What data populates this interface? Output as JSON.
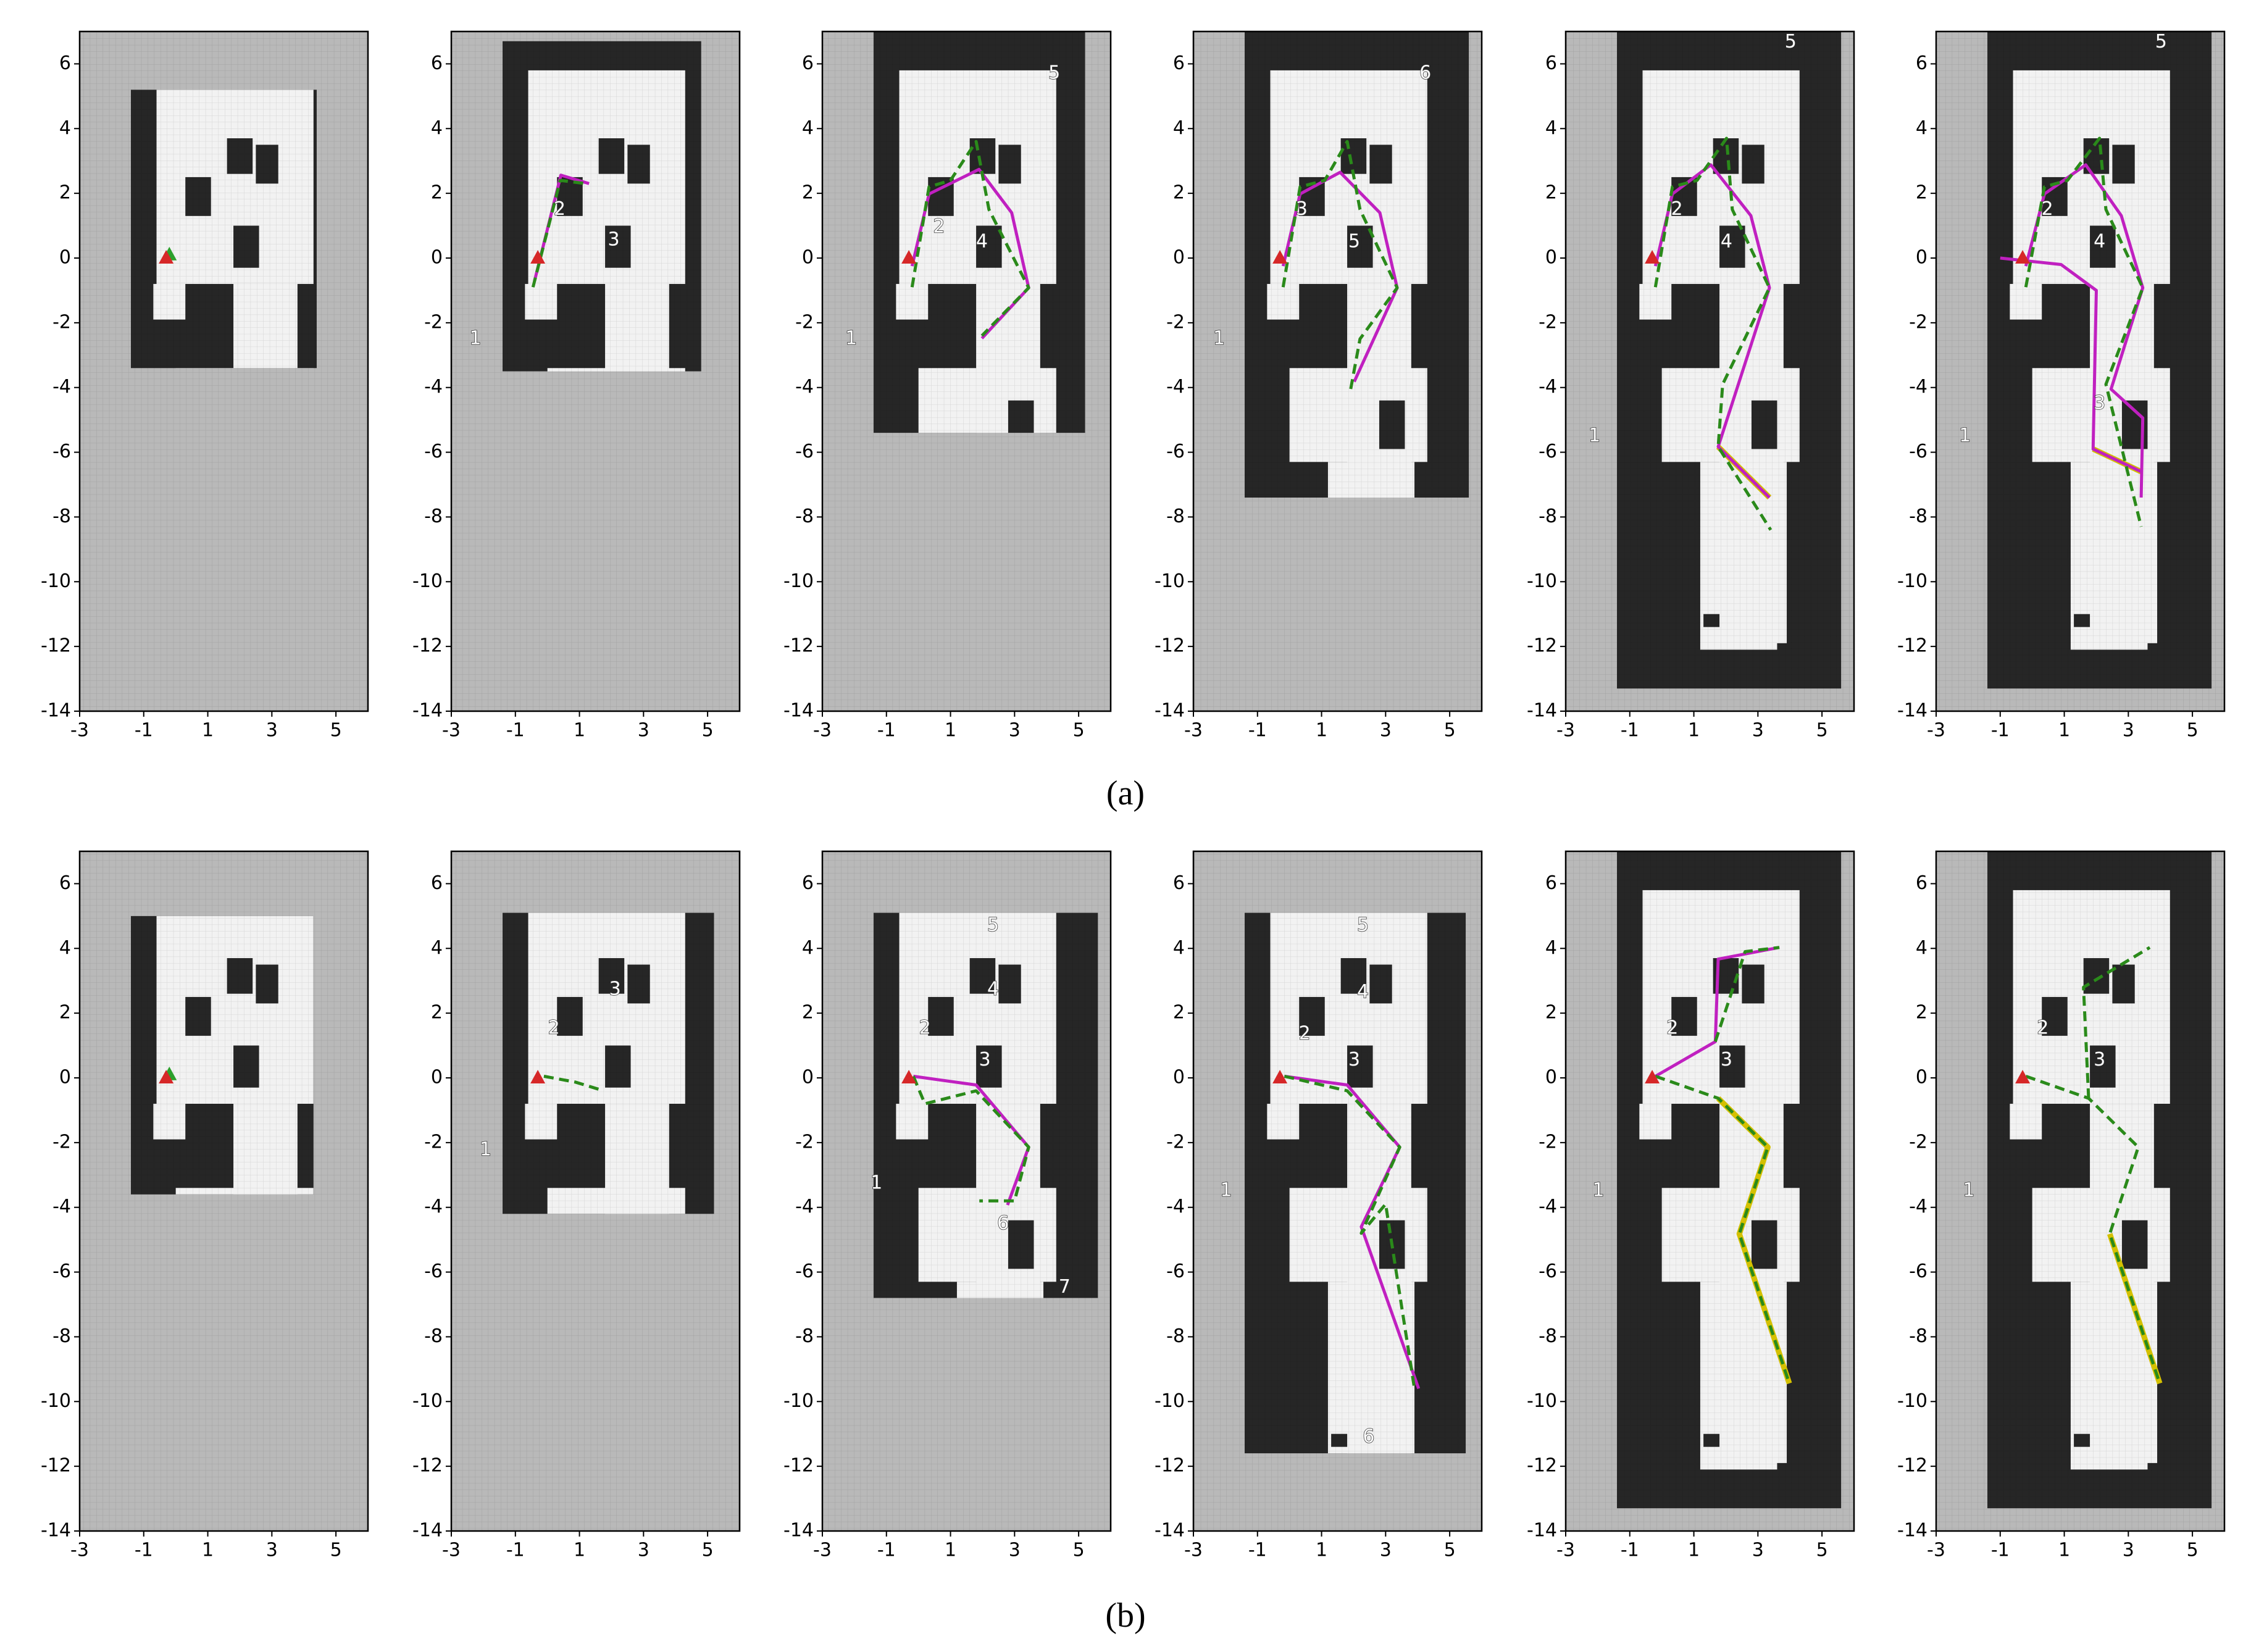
{
  "chart_data": [
    {
      "type": "map",
      "xlim": [
        -3,
        6
      ],
      "ylim": [
        -14,
        7
      ],
      "xticks": [
        -3,
        -1,
        1,
        3,
        5
      ],
      "yticks": [
        -14,
        -12,
        -10,
        -8,
        -6,
        -4,
        -2,
        0,
        2,
        4,
        6
      ],
      "annotations": [],
      "series": [
        {
          "color": "#2ca02c",
          "marker": "^",
          "x": [
            -0.2
          ],
          "y": [
            0.1
          ]
        },
        {
          "color": "#d62728",
          "marker": "^",
          "x": [
            -0.3
          ],
          "y": [
            0
          ]
        }
      ]
    },
    {
      "type": "map",
      "xlim": [
        -3,
        6
      ],
      "ylim": [
        -14,
        7
      ],
      "xticks": [
        -3,
        -1,
        1,
        3,
        5
      ],
      "yticks": [
        -14,
        -12,
        -10,
        -8,
        -6,
        -4,
        -2,
        0,
        2,
        4,
        6
      ],
      "annotations": [
        {
          "text": "1",
          "x": -2.25,
          "y": -2.5
        },
        {
          "text": "2",
          "x": 0.38,
          "y": 1.5
        },
        {
          "text": "3",
          "x": 2.07,
          "y": 0.55
        }
      ],
      "series": [
        {
          "color": "#c020c0",
          "x": [
            -0.4,
            0.42,
            1.3
          ],
          "y": [
            -0.7,
            2.56,
            2.3
          ]
        },
        {
          "color": "#2a8a1a",
          "dash": true,
          "x": [
            -0.45,
            0.4,
            1.2
          ],
          "y": [
            -0.9,
            2.4,
            2.3
          ]
        },
        {
          "color": "#d62728",
          "marker": "^",
          "x": [
            -0.3
          ],
          "y": [
            0
          ]
        }
      ]
    },
    {
      "type": "map",
      "xlim": [
        -3,
        6
      ],
      "ylim": [
        -14,
        7
      ],
      "xticks": [
        -3,
        -1,
        1,
        3,
        5
      ],
      "yticks": [
        -14,
        -12,
        -10,
        -8,
        -6,
        -4,
        -2,
        0,
        2,
        4,
        6
      ],
      "annotations": [
        {
          "text": "1",
          "x": -2.1,
          "y": -2.5
        },
        {
          "text": "2",
          "x": 0.64,
          "y": 0.95
        },
        {
          "text": "4",
          "x": 1.98,
          "y": 0.5
        },
        {
          "text": "5",
          "x": 4.24,
          "y": 5.7
        }
      ],
      "series": [
        {
          "color": "#c020c0",
          "x": [
            -0.2,
            0.33,
            1.89,
            2.91,
            3.44,
            1.98
          ],
          "y": [
            -0.25,
            1.98,
            2.74,
            1.4,
            -0.92,
            -2.48
          ]
        },
        {
          "color": "#2a8a1a",
          "dash": true,
          "x": [
            -0.2,
            0.33,
            1,
            1.8,
            2.2,
            3.44,
            1.98
          ],
          "y": [
            -0.9,
            2.2,
            2.4,
            3.6,
            1.5,
            -0.92,
            -2.4
          ]
        },
        {
          "color": "#d62728",
          "marker": "^",
          "x": [
            -0.3
          ],
          "y": [
            0
          ]
        }
      ]
    },
    {
      "type": "map",
      "xlim": [
        -3,
        6
      ],
      "ylim": [
        -14,
        7
      ],
      "xticks": [
        -3,
        -1,
        1,
        3,
        5
      ],
      "yticks": [
        -14,
        -12,
        -10,
        -8,
        -6,
        -4,
        -2,
        0,
        2,
        4,
        6
      ],
      "annotations": [
        {
          "text": "1",
          "x": -2.2,
          "y": -2.5
        },
        {
          "text": "3",
          "x": 0.38,
          "y": 1.5
        },
        {
          "text": "5",
          "x": 2.02,
          "y": 0.5
        },
        {
          "text": "6",
          "x": 4.24,
          "y": 5.7
        }
      ],
      "series": [
        {
          "color": "#c020c0",
          "x": [
            -0.2,
            0.33,
            1.58,
            2.82,
            3.36,
            2.02
          ],
          "y": [
            -0.25,
            1.98,
            2.65,
            1.4,
            -0.92,
            -3.82
          ]
        },
        {
          "color": "#2a8a1a",
          "dash": true,
          "x": [
            -0.2,
            0.33,
            1.1,
            1.8,
            2.2,
            3.36,
            2.2,
            1.9
          ],
          "y": [
            -0.9,
            2.2,
            2.4,
            3.6,
            1.5,
            -0.92,
            -2.5,
            -4.1
          ]
        },
        {
          "color": "#d62728",
          "marker": "^",
          "x": [
            -0.3
          ],
          "y": [
            0
          ]
        }
      ]
    },
    {
      "type": "map",
      "xlim": [
        -3,
        6
      ],
      "ylim": [
        -14,
        7
      ],
      "xticks": [
        -3,
        -1,
        1,
        3,
        5
      ],
      "yticks": [
        -14,
        -12,
        -10,
        -8,
        -6,
        -4,
        -2,
        0,
        2,
        4,
        6
      ],
      "annotations": [
        {
          "text": "1",
          "x": -2.1,
          "y": -5.5
        },
        {
          "text": "2",
          "x": 0.47,
          "y": 1.5
        },
        {
          "text": "4",
          "x": 2.02,
          "y": 0.5
        },
        {
          "text": "5",
          "x": 4.02,
          "y": 6.67
        }
      ],
      "series": [
        {
          "color": "#d4c000",
          "width": 3,
          "x": [
            1.76,
            3.36
          ],
          "y": [
            -5.83,
            -7.4
          ]
        },
        {
          "color": "#c020c0",
          "x": [
            -0.2,
            0.33,
            1.53,
            2.78,
            3.36,
            1.76,
            3.36
          ],
          "y": [
            -0.25,
            1.98,
            2.88,
            1.31,
            -0.92,
            -5.83,
            -7.4
          ]
        },
        {
          "color": "#2a8a1a",
          "dash": true,
          "x": [
            -0.2,
            0.33,
            1.1,
            2.02,
            2.2,
            3.36,
            1.9,
            1.76,
            3.4
          ],
          "y": [
            -0.9,
            2.2,
            2.4,
            3.7,
            1.5,
            -0.92,
            -3.9,
            -5.83,
            -8.4
          ]
        },
        {
          "color": "#d62728",
          "marker": "^",
          "x": [
            -0.3
          ],
          "y": [
            0
          ]
        }
      ]
    },
    {
      "type": "map",
      "xlim": [
        -3,
        6
      ],
      "ylim": [
        -14,
        7
      ],
      "xticks": [
        -3,
        -1,
        1,
        3,
        5
      ],
      "yticks": [
        -14,
        -12,
        -10,
        -8,
        -6,
        -4,
        -2,
        0,
        2,
        4,
        6
      ],
      "annotations": [
        {
          "text": "1",
          "x": -2.1,
          "y": -5.5
        },
        {
          "text": "2",
          "x": 0.47,
          "y": 1.5
        },
        {
          "text": "4",
          "x": 2.1,
          "y": 0.5
        },
        {
          "text": "3",
          "x": 2.1,
          "y": -4.5
        },
        {
          "text": "5",
          "x": 4.02,
          "y": 6.67
        }
      ],
      "series": [
        {
          "color": "#d4c000",
          "width": 3,
          "x": [
            1.9,
            3.4
          ],
          "y": [
            -5.9,
            -6.6
          ]
        },
        {
          "color": "#c020c0",
          "x": [
            -0.2,
            0.38,
            1.67,
            2.78,
            3.45,
            2.46,
            3.45,
            3.4
          ],
          "y": [
            -0.25,
            1.98,
            2.88,
            1.31,
            -0.92,
            -4.05,
            -4.94,
            -7.4
          ]
        },
        {
          "color": "#c020c0",
          "x": [
            -1,
            0.9,
            2,
            1.9,
            3.4
          ],
          "y": [
            0,
            -0.2,
            -1,
            -5.9,
            -6.6
          ]
        },
        {
          "color": "#2a8a1a",
          "dash": true,
          "x": [
            -0.2,
            0.38,
            1.1,
            2.1,
            2.3,
            3.45,
            2.3,
            3.4
          ],
          "y": [
            -0.9,
            2.2,
            2.4,
            3.7,
            1.5,
            -0.92,
            -3.9,
            -8.3
          ]
        },
        {
          "color": "#d62728",
          "marker": "^",
          "x": [
            -0.3
          ],
          "y": [
            0
          ]
        }
      ]
    },
    {
      "type": "map",
      "xlim": [
        -3,
        6
      ],
      "ylim": [
        -14,
        7
      ],
      "xticks": [
        -3,
        -1,
        1,
        3,
        5
      ],
      "yticks": [
        -14,
        -12,
        -10,
        -8,
        -6,
        -4,
        -2,
        0,
        2,
        4,
        6
      ],
      "annotations": [],
      "series": [
        {
          "color": "#2ca02c",
          "marker": "^",
          "x": [
            -0.2
          ],
          "y": [
            0.1
          ]
        },
        {
          "color": "#d62728",
          "marker": "^",
          "x": [
            -0.3
          ],
          "y": [
            0
          ]
        }
      ]
    },
    {
      "type": "map",
      "xlim": [
        -3,
        6
      ],
      "ylim": [
        -14,
        7
      ],
      "xticks": [
        -3,
        -1,
        1,
        3,
        5
      ],
      "yticks": [
        -14,
        -12,
        -10,
        -8,
        -6,
        -4,
        -2,
        0,
        2,
        4,
        6
      ],
      "annotations": [
        {
          "text": "1",
          "x": -1.93,
          "y": -2.23
        },
        {
          "text": "2",
          "x": 0.2,
          "y": 1.53
        },
        {
          "text": "3",
          "x": 2.11,
          "y": 2.73
        }
      ],
      "series": [
        {
          "color": "#2a8a1a",
          "dash": true,
          "x": [
            -0.11,
            0.87,
            1.76
          ],
          "y": [
            0.05,
            -0.13,
            -0.4
          ]
        },
        {
          "color": "#d62728",
          "marker": "^",
          "x": [
            -0.3
          ],
          "y": [
            0
          ]
        }
      ]
    },
    {
      "type": "map",
      "xlim": [
        -3,
        6
      ],
      "ylim": [
        -14,
        7
      ],
      "xticks": [
        -3,
        -1,
        1,
        3,
        5
      ],
      "yticks": [
        -14,
        -12,
        -10,
        -8,
        -6,
        -4,
        -2,
        0,
        2,
        4,
        6
      ],
      "annotations": [
        {
          "text": "1",
          "x": -1.31,
          "y": -3.26
        },
        {
          "text": "2",
          "x": 0.2,
          "y": 1.53
        },
        {
          "text": "3",
          "x": 2.07,
          "y": 0.54
        },
        {
          "text": "4",
          "x": 2.33,
          "y": 2.73
        },
        {
          "text": "5",
          "x": 2.33,
          "y": 4.7
        },
        {
          "text": "6",
          "x": 2.64,
          "y": -4.51
        },
        {
          "text": "7",
          "x": 4.56,
          "y": -6.48
        }
      ],
      "series": [
        {
          "color": "#c020c0",
          "x": [
            -0.16,
            1.8,
            3.44,
            2.78
          ],
          "y": [
            0.05,
            -0.22,
            -2.14,
            -3.93
          ]
        },
        {
          "color": "#2a8a1a",
          "dash": true,
          "x": [
            -0.16,
            0.2,
            1.8,
            3.44,
            3,
            1.9
          ],
          "y": [
            0.05,
            -0.8,
            -0.4,
            -2.14,
            -3.8,
            -3.8
          ]
        },
        {
          "color": "#d62728",
          "marker": "^",
          "x": [
            -0.3
          ],
          "y": [
            0
          ]
        }
      ]
    },
    {
      "type": "map",
      "xlim": [
        -3,
        6
      ],
      "ylim": [
        -14,
        7
      ],
      "xticks": [
        -3,
        -1,
        1,
        3,
        5
      ],
      "yticks": [
        -14,
        -12,
        -10,
        -8,
        -6,
        -4,
        -2,
        0,
        2,
        4,
        6
      ],
      "annotations": [
        {
          "text": "1",
          "x": -1.98,
          "y": -3.49
        },
        {
          "text": "2",
          "x": 0.47,
          "y": 1.35
        },
        {
          "text": "3",
          "x": 2.02,
          "y": 0.54
        },
        {
          "text": "4",
          "x": 2.29,
          "y": 2.64
        },
        {
          "text": "5",
          "x": 2.29,
          "y": 4.7
        },
        {
          "text": "6",
          "x": 2.47,
          "y": -11.1
        }
      ],
      "series": [
        {
          "color": "#c020c0",
          "x": [
            -0.16,
            1.8,
            3.44,
            2.24,
            4.03
          ],
          "y": [
            0.05,
            -0.22,
            -2.14,
            -4.6,
            -9.6
          ]
        },
        {
          "color": "#2a8a1a",
          "dash": true,
          "x": [
            -0.16,
            1.8,
            3.44,
            2.24,
            3,
            3.9
          ],
          "y": [
            0.05,
            -0.4,
            -2.14,
            -4.8,
            -3.9,
            -9.6
          ]
        },
        {
          "color": "#d62728",
          "marker": "^",
          "x": [
            -0.3
          ],
          "y": [
            0
          ]
        }
      ]
    },
    {
      "type": "map",
      "xlim": [
        -3,
        6
      ],
      "ylim": [
        -14,
        7
      ],
      "xticks": [
        -3,
        -1,
        1,
        3,
        5
      ],
      "yticks": [
        -14,
        -12,
        -10,
        -8,
        -6,
        -4,
        -2,
        0,
        2,
        4,
        6
      ],
      "annotations": [
        {
          "text": "1",
          "x": -1.98,
          "y": -3.49
        },
        {
          "text": "2",
          "x": 0.33,
          "y": 1.53
        },
        {
          "text": "3",
          "x": 2.02,
          "y": 0.54
        }
      ],
      "series": [
        {
          "color": "#d4c000",
          "width": 3,
          "x": [
            1.76,
            3.31,
            2.42,
            3.98
          ],
          "y": [
            -0.63,
            -2.14,
            -4.82,
            -9.44
          ]
        },
        {
          "color": "#c020c0",
          "x": [
            -0.2,
            1.67,
            1.76,
            3.67
          ],
          "y": [
            0.05,
            1.12,
            3.67,
            4.03
          ]
        },
        {
          "color": "#2a8a1a",
          "dash": true,
          "x": [
            -0.2,
            1.76,
            3.31,
            2.42,
            3.98
          ],
          "y": [
            0.05,
            -0.63,
            -2.14,
            -4.82,
            -9.44
          ]
        },
        {
          "color": "#2a8a1a",
          "dash": true,
          "x": [
            1.67,
            2.6,
            3.67
          ],
          "y": [
            1.12,
            3.9,
            4.03
          ]
        },
        {
          "color": "#d62728",
          "marker": "^",
          "x": [
            -0.3
          ],
          "y": [
            0
          ]
        }
      ]
    },
    {
      "type": "map",
      "xlim": [
        -3,
        6
      ],
      "ylim": [
        -14,
        7
      ],
      "xticks": [
        -3,
        -1,
        1,
        3,
        5
      ],
      "yticks": [
        -14,
        -12,
        -10,
        -8,
        -6,
        -4,
        -2,
        0,
        2,
        4,
        6
      ],
      "annotations": [
        {
          "text": "1",
          "x": -1.98,
          "y": -3.49
        },
        {
          "text": "2",
          "x": 0.33,
          "y": 1.53
        },
        {
          "text": "3",
          "x": 2.1,
          "y": 0.54
        }
      ],
      "series": [
        {
          "color": "#d4c000",
          "width": 3,
          "x": [
            2.42,
            3.98
          ],
          "y": [
            -4.82,
            -9.44
          ]
        },
        {
          "color": "#2a8a1a",
          "dash": true,
          "x": [
            -0.2,
            1.76,
            3.31,
            2.42,
            3.98
          ],
          "y": [
            0.05,
            -0.63,
            -2.14,
            -4.82,
            -9.44
          ]
        },
        {
          "color": "#2a8a1a",
          "dash": true,
          "x": [
            1.76,
            1.6,
            3.67
          ],
          "y": [
            -0.63,
            2.8,
            4.03
          ]
        },
        {
          "color": "#d62728",
          "marker": "^",
          "x": [
            -0.3
          ],
          "y": [
            0
          ]
        }
      ]
    }
  ],
  "captions": [
    "(a)",
    "(b)"
  ]
}
